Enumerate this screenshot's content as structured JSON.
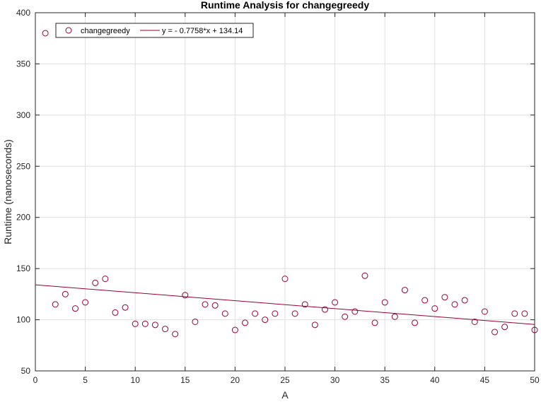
{
  "chart_data": {
    "type": "scatter",
    "title": "Runtime Analysis for changegreedy",
    "xlabel": "A",
    "ylabel": "Runtime (nanoseconds)",
    "xlim": [
      0,
      50
    ],
    "ylim": [
      50,
      400
    ],
    "xticks": [
      "0",
      "5",
      "10",
      "15",
      "20",
      "25",
      "30",
      "35",
      "40",
      "45",
      "50"
    ],
    "yticks": [
      "50",
      "100",
      "150",
      "200",
      "250",
      "300",
      "350",
      "400"
    ],
    "grid": true,
    "legend_position": "top-left",
    "series": [
      {
        "name": "changegreedy",
        "kind": "scatter",
        "marker": "open-circle",
        "color": "#990033",
        "x": [
          1,
          2,
          3,
          4,
          5,
          6,
          7,
          8,
          9,
          10,
          11,
          12,
          13,
          14,
          15,
          16,
          17,
          18,
          19,
          20,
          21,
          22,
          23,
          24,
          25,
          26,
          27,
          28,
          29,
          30,
          31,
          32,
          33,
          34,
          35,
          36,
          37,
          38,
          39,
          40,
          41,
          42,
          43,
          44,
          45,
          46,
          47,
          48,
          49,
          50
        ],
        "y": [
          380,
          115,
          125,
          111,
          117,
          136,
          140,
          107,
          112,
          96,
          96,
          95,
          91,
          86,
          124,
          98,
          115,
          114,
          106,
          90,
          97,
          106,
          100,
          106,
          140,
          106,
          115,
          95,
          110,
          117,
          103,
          108,
          143,
          97,
          117,
          103,
          129,
          97,
          119,
          111,
          122,
          115,
          119,
          98,
          108,
          88,
          93,
          106,
          106,
          90
        ]
      },
      {
        "name": "y = - 0.7758*x + 134.14",
        "kind": "line",
        "color": "#990033",
        "slope": -0.7758,
        "intercept": 134.14
      }
    ]
  }
}
